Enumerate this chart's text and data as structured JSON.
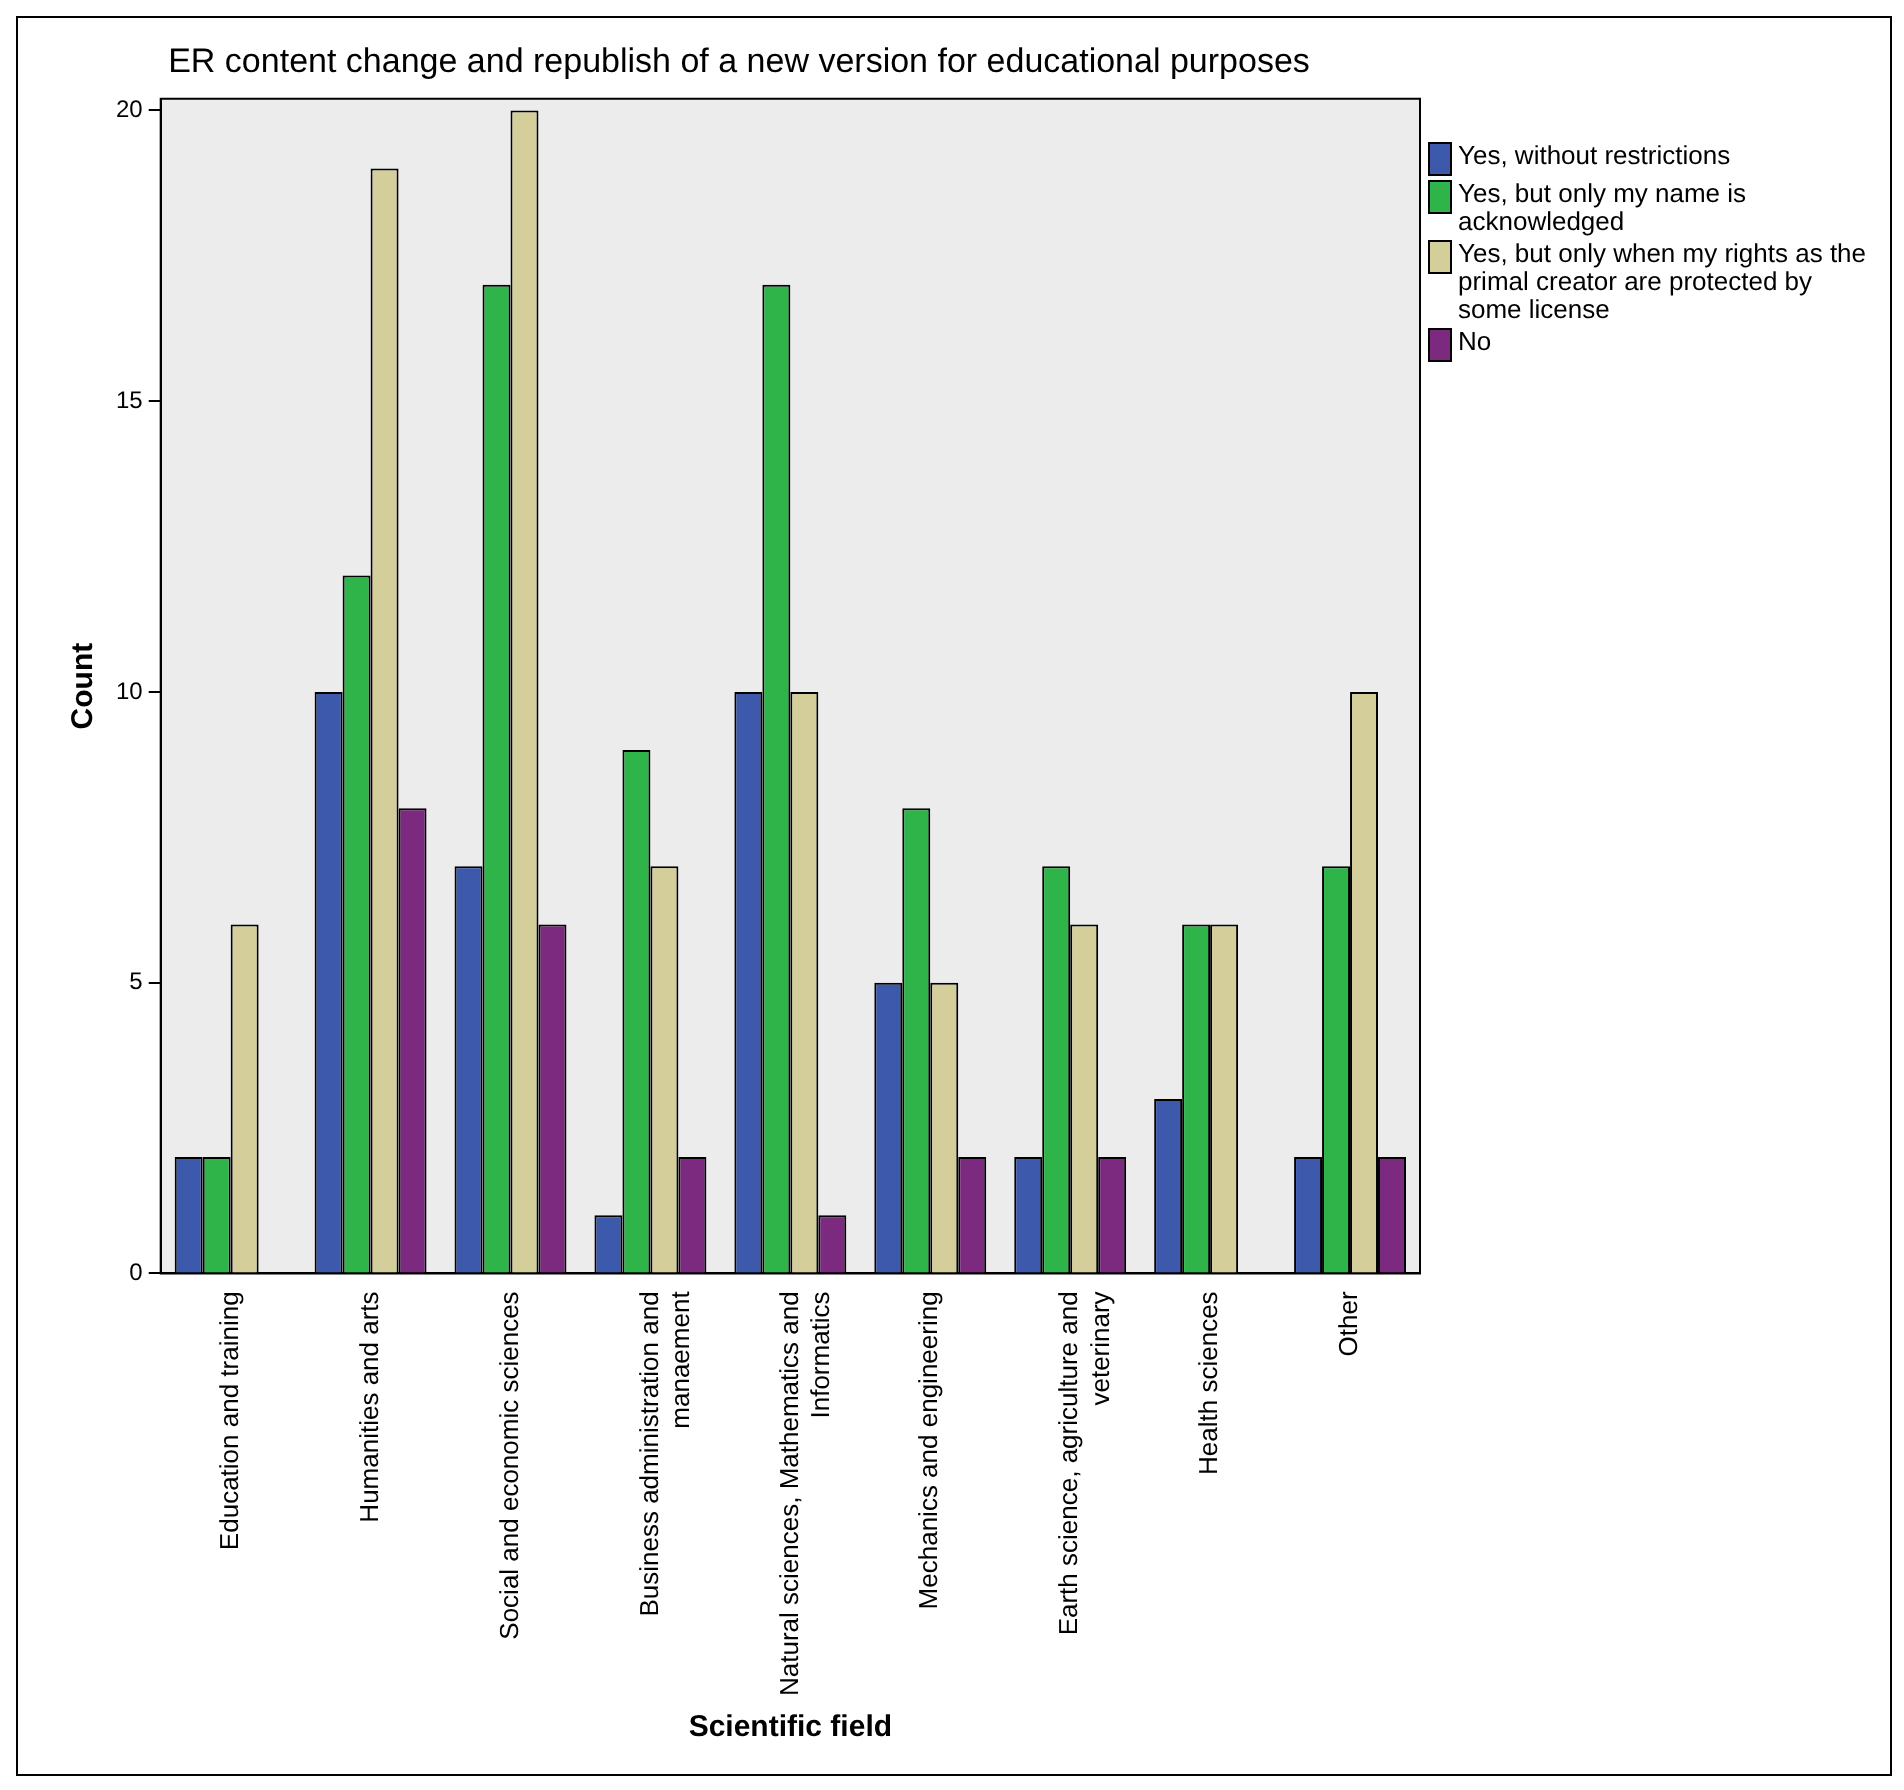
{
  "chart_data": {
    "type": "bar",
    "title": "ER content change and republish of a new version for educational purposes",
    "xlabel": "Scientific field",
    "ylabel": "Count",
    "categories": [
      "Education and training",
      "Humanities and arts",
      "Social and economic sciences",
      "Business administration and manaement",
      "Natural sciences, Mathematics and Informatics",
      "Mechanics and engineering",
      "Earth science, agriculture and veterinary",
      "Health sciences",
      "Other"
    ],
    "series": [
      {
        "name": "Yes, without restrictions",
        "color": "#3d59ab",
        "values": [
          2,
          10,
          7,
          1,
          10,
          5,
          2,
          3,
          2
        ]
      },
      {
        "name": "Yes, but only my name is acknowledged",
        "color": "#2fb44a",
        "values": [
          2,
          12,
          17,
          9,
          17,
          8,
          7,
          6,
          7
        ]
      },
      {
        "name": "Yes, but only when my rights as the primal creator are protected by some license",
        "color": "#d4cf9a",
        "values": [
          6,
          19,
          20,
          7,
          10,
          5,
          6,
          6,
          10
        ]
      },
      {
        "name": "No",
        "color": "#7b2a7f",
        "values": [
          0,
          8,
          6,
          2,
          1,
          2,
          2,
          0,
          2
        ]
      }
    ],
    "ylim": [
      0,
      20.2
    ],
    "yticks": [
      0,
      5,
      10,
      15,
      20
    ],
    "grid": false,
    "legend": "right"
  }
}
